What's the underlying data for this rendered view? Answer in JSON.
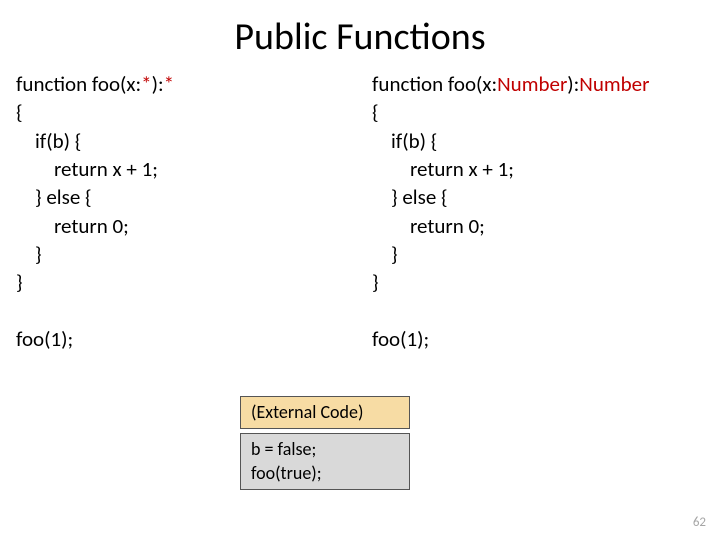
{
  "title": "Public Functions",
  "left": {
    "sig_pre": "function foo(x:",
    "sig_t1": "*",
    "sig_mid": "):",
    "sig_t2": "*",
    "l1": "{",
    "l2": "    if(b) {",
    "l3": "        return x + 1;",
    "l4": "    } else {",
    "l5": "        return 0;",
    "l6": "    }",
    "l7": "}",
    "call": "foo(1);"
  },
  "right": {
    "sig_pre": "function foo(x:",
    "sig_t1": "Number",
    "sig_mid": "):",
    "sig_t2": "Number",
    "l1": "{",
    "l2": "    if(b) {",
    "l3": "        return x + 1;",
    "l4": "    } else {",
    "l5": "        return 0;",
    "l6": "    }",
    "l7": "}",
    "call": "foo(1);"
  },
  "ext_label": "(External Code)",
  "ext_code": "b = false;\nfoo(true);",
  "pagenum": "62",
  "colors": {
    "type_red": "#c00000",
    "ext_bg": "#f7dca4",
    "code_bg": "#d9d9d9",
    "pagenum": "#a6a6a6"
  }
}
